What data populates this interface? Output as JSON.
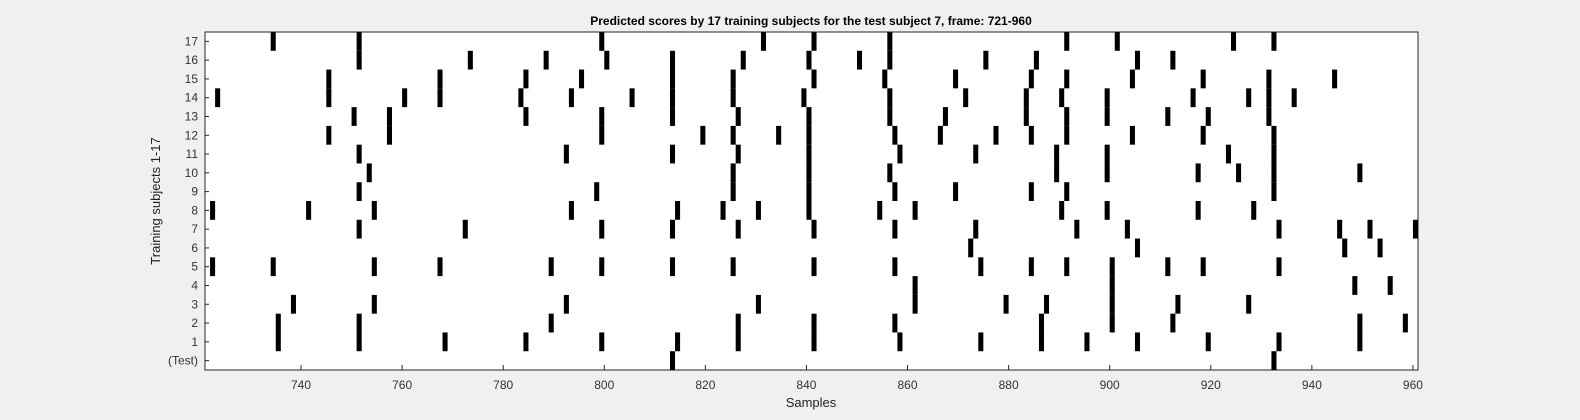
{
  "chart_data": {
    "type": "heatmap",
    "title": "Predicted scores by 17 training subjects for the test subject 7, frame: 721-960",
    "xlabel": "Samples",
    "ylabel": "Training subjects 1-17",
    "xlim": [
      721,
      960
    ],
    "x_ticks": [
      "740",
      "760",
      "780",
      "800",
      "820",
      "840",
      "860",
      "880",
      "900",
      "920",
      "940",
      "960"
    ],
    "rows": [
      {
        "label": "(Test)",
        "marks": [
          813,
          932
        ]
      },
      {
        "label": "1",
        "marks": [
          735,
          751,
          768,
          784,
          799,
          814,
          826,
          841,
          858,
          874,
          886,
          895,
          905,
          919,
          933,
          949
        ]
      },
      {
        "label": "2",
        "marks": [
          735,
          751,
          789,
          826,
          841,
          857,
          886,
          900,
          912,
          949,
          958
        ]
      },
      {
        "label": "3",
        "marks": [
          738,
          754,
          792,
          830,
          861,
          879,
          887,
          900,
          913,
          927
        ]
      },
      {
        "label": "4",
        "marks": [
          861,
          900,
          948,
          955
        ]
      },
      {
        "label": "5",
        "marks": [
          722,
          734,
          754,
          767,
          789,
          799,
          813,
          825,
          841,
          857,
          874,
          884,
          891,
          900,
          911,
          918,
          933
        ]
      },
      {
        "label": "6",
        "marks": [
          872,
          905,
          946,
          953
        ]
      },
      {
        "label": "7",
        "marks": [
          751,
          772,
          799,
          813,
          826,
          841,
          857,
          873,
          893,
          903,
          933,
          945,
          951,
          960
        ]
      },
      {
        "label": "8",
        "marks": [
          722,
          741,
          754,
          793,
          814,
          823,
          830,
          840,
          854,
          861,
          890,
          899,
          917,
          928
        ]
      },
      {
        "label": "9",
        "marks": [
          751,
          798,
          825,
          840,
          857,
          869,
          884,
          891,
          932
        ]
      },
      {
        "label": "10",
        "marks": [
          753,
          825,
          840,
          856,
          889,
          899,
          917,
          925,
          932,
          949
        ]
      },
      {
        "label": "11",
        "marks": [
          751,
          792,
          813,
          826,
          840,
          858,
          873,
          889,
          899,
          923,
          932
        ]
      },
      {
        "label": "12",
        "marks": [
          745,
          757,
          799,
          819,
          825,
          834,
          840,
          857,
          866,
          877,
          884,
          891,
          904,
          918,
          932
        ]
      },
      {
        "label": "13",
        "marks": [
          750,
          757,
          784,
          799,
          813,
          826,
          840,
          856,
          867,
          883,
          891,
          899,
          911,
          919,
          931
        ]
      },
      {
        "label": "14",
        "marks": [
          723,
          745,
          760,
          767,
          783,
          793,
          805,
          813,
          825,
          839,
          856,
          871,
          883,
          890,
          899,
          916,
          927,
          931,
          936
        ]
      },
      {
        "label": "15",
        "marks": [
          745,
          767,
          784,
          795,
          813,
          825,
          841,
          855,
          869,
          884,
          891,
          904,
          918,
          931,
          944
        ]
      },
      {
        "label": "16",
        "marks": [
          751,
          773,
          788,
          800,
          813,
          827,
          840,
          850,
          856,
          875,
          885,
          905,
          912
        ]
      },
      {
        "label": "17",
        "marks": [
          734,
          751,
          799,
          831,
          841,
          856,
          891,
          901,
          924,
          932
        ]
      }
    ],
    "colors": {
      "mark": "#000000",
      "plot_bg": "#ffffff",
      "figure_bg": "#f0f0f0"
    },
    "grid": false,
    "legend": "none"
  }
}
